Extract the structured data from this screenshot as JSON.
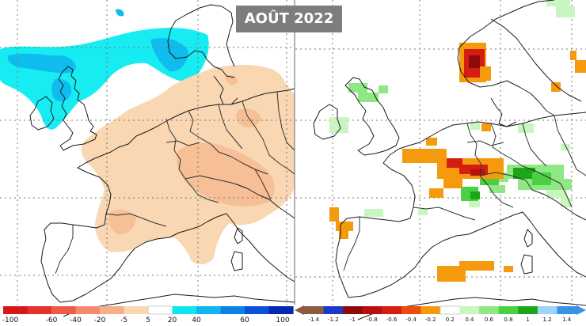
{
  "title": "AOÛT 2022",
  "left_map": {
    "name": "precipitation-anomaly-percent",
    "legend": {
      "labels": [
        "-100",
        "-60",
        "-40",
        "-20",
        "-5",
        "5",
        "20",
        "40",
        "60",
        "100"
      ],
      "colors": [
        "#d6171a",
        "#e3322b",
        "#ec5b47",
        "#f28a6d",
        "#f6b088",
        "#f8d7b2",
        "#ffffff",
        "#11e6f0",
        "#10b6ef",
        "#0d82e6",
        "#0a52d6",
        "#0627b0"
      ]
    }
  },
  "right_map": {
    "name": "precipitation-index",
    "legend": {
      "labels": [
        "-1.4",
        "-1.2",
        "-1",
        "-0.8",
        "-0.6",
        "-0.4",
        "-0.2",
        "0.2",
        "0.4",
        "0.6",
        "0.8",
        "1",
        "1.2",
        "1.4"
      ],
      "colors": [
        "#8c5a3c",
        "#1c3ac8",
        "#8e0a0a",
        "#b80f0f",
        "#d51d12",
        "#ef4b0e",
        "#f59a0c",
        "#ffffff",
        "#c8f5c0",
        "#8fe883",
        "#4bd043",
        "#1ca61c",
        "#9fd3f7",
        "#3a8fe6"
      ]
    }
  }
}
